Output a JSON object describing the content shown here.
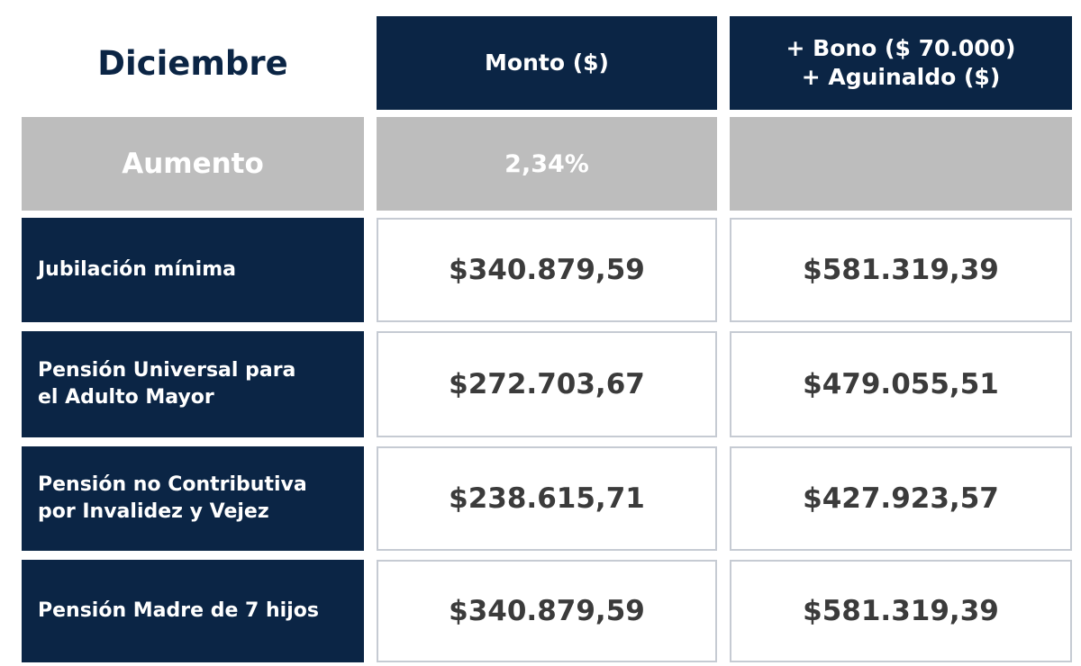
{
  "header": {
    "title": "Diciembre",
    "col1": "Monto ($)",
    "col2_line1": "+ Bono ($ 70.000)",
    "col2_line2": "+ Aguinaldo ($)"
  },
  "increase": {
    "label": "Aumento",
    "monto": "2,34%",
    "bono": ""
  },
  "rows": [
    {
      "label_line1": "Jubilación mínima",
      "label_line2": "",
      "monto": "$340.879,59",
      "total": "$581.319,39"
    },
    {
      "label_line1": "Pensión Universal para",
      "label_line2": "el Adulto Mayor",
      "monto": "$272.703,67",
      "total": "$479.055,51"
    },
    {
      "label_line1": "Pensión no Contributiva",
      "label_line2": "por Invalidez y Vejez",
      "monto": "$238.615,71",
      "total": "$427.923,57"
    },
    {
      "label_line1": "Pensión Madre de 7 hijos",
      "label_line2": "",
      "monto": "$340.879,59",
      "total": "$581.319,39"
    }
  ],
  "colors": {
    "navy": "#0b2545",
    "gray": "#bdbdbd",
    "border": "#c6cbd3",
    "value_text": "#3b3b3b"
  }
}
